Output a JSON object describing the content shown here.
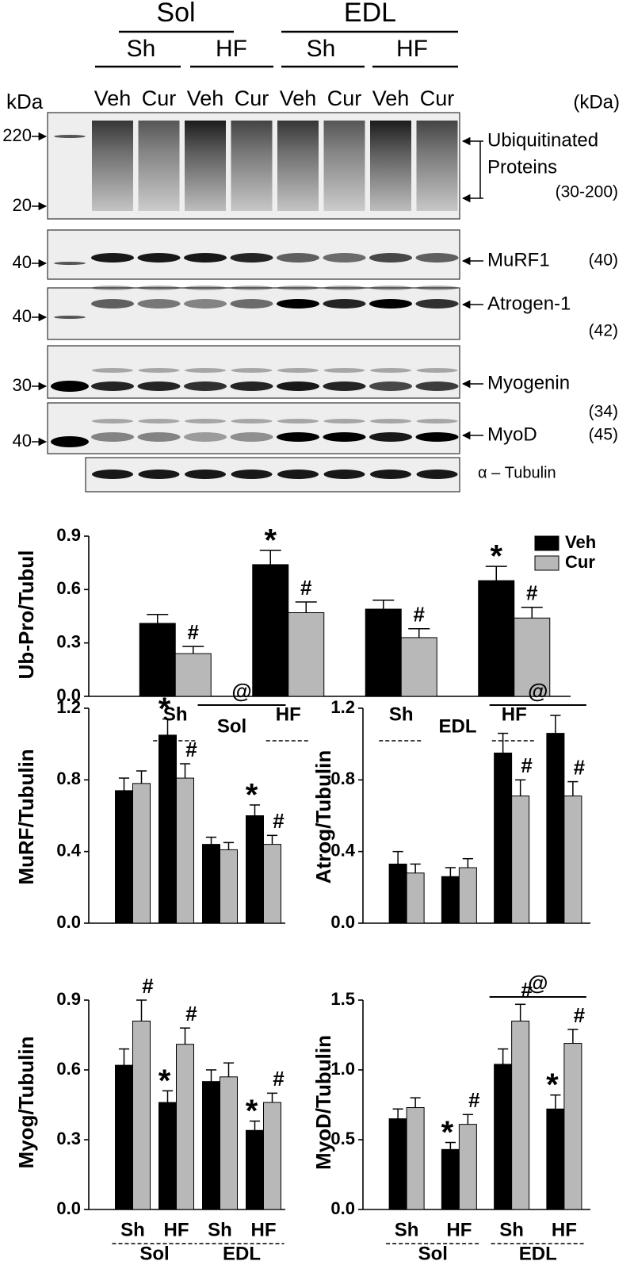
{
  "blot": {
    "tissues": [
      "Sol",
      "EDL"
    ],
    "conditions": [
      "Sh",
      "HF",
      "Sh",
      "HF"
    ],
    "treatments": [
      "Veh",
      "Cur",
      "Veh",
      "Cur",
      "Veh",
      "Cur",
      "Veh",
      "Cur"
    ],
    "kda_left": "kDa",
    "kda_right": "(kDa)",
    "panels": [
      {
        "markers": [
          "220",
          "20"
        ],
        "label": [
          "Ubiquitinated",
          "Proteins"
        ],
        "size": "(30-200)"
      },
      {
        "markers": [
          "40"
        ],
        "label": [
          "MuRF1"
        ],
        "size": "(40)"
      },
      {
        "markers": [
          "40"
        ],
        "label": [
          "Atrogen-1"
        ],
        "size": "(42)"
      },
      {
        "markers": [
          "30"
        ],
        "label": [
          "Myogenin"
        ],
        "size": "(34)"
      },
      {
        "markers": [
          "40"
        ],
        "label": [
          "MyoD"
        ],
        "size": "(45)"
      }
    ],
    "loading_control": "α – Tubulin"
  },
  "chart_data": [
    {
      "type": "bar",
      "y_label": "Ub-Pro/Tubul",
      "categories": [
        "Sh",
        "HF",
        "Sh",
        "HF"
      ],
      "groups": [
        "Sol",
        "EDL"
      ],
      "ylim": [
        0,
        0.9
      ],
      "yticks": [
        {
          "value": 0,
          "label": "0.0"
        },
        0.3,
        0.6,
        0.9
      ],
      "legend": true,
      "series": [
        {
          "name": "Veh",
          "color": "#000000",
          "values": [
            0.41,
            0.74,
            0.49,
            0.65
          ],
          "errors": [
            0.05,
            0.08,
            0.05,
            0.08
          ],
          "annotations": [
            null,
            "*",
            null,
            "*"
          ]
        },
        {
          "name": "Cur",
          "color": "#b8b8b8",
          "values": [
            0.24,
            0.47,
            0.33,
            0.44
          ],
          "errors": [
            0.04,
            0.06,
            0.05,
            0.06
          ],
          "annotations": [
            "#",
            "#",
            "#",
            "#"
          ]
        }
      ]
    },
    {
      "type": "bar",
      "y_label": "MuRF/Tubulin",
      "ylim": [
        0,
        1.2
      ],
      "yticks": [
        {
          "value": 0,
          "label": "0.0"
        },
        0.4,
        0.8,
        1.2
      ],
      "legend": false,
      "bracket": {
        "label": "@",
        "group": 1
      },
      "series": [
        {
          "name": "Veh",
          "color": "#000000",
          "values": [
            0.74,
            1.05,
            0.44,
            0.6
          ],
          "errors": [
            0.07,
            0.09,
            0.04,
            0.06
          ],
          "annotations": [
            null,
            "*",
            null,
            "*"
          ]
        },
        {
          "name": "Cur",
          "color": "#b8b8b8",
          "values": [
            0.78,
            0.81,
            0.41,
            0.44
          ],
          "errors": [
            0.07,
            0.08,
            0.04,
            0.05
          ],
          "annotations": [
            null,
            "#",
            null,
            "#"
          ]
        }
      ]
    },
    {
      "type": "bar",
      "y_label": "Atrog/Tubulin",
      "ylim": [
        0,
        1.2
      ],
      "yticks": [
        {
          "value": 0,
          "label": "0.0"
        },
        0.4,
        0.8,
        1.2
      ],
      "legend": false,
      "bracket": {
        "label": "@",
        "group": 1
      },
      "series": [
        {
          "name": "Veh",
          "color": "#000000",
          "values": [
            0.33,
            0.26,
            0.95,
            1.06
          ],
          "errors": [
            0.07,
            0.05,
            0.11,
            0.1
          ],
          "annotations": [
            null,
            null,
            null,
            null
          ]
        },
        {
          "name": "Cur",
          "color": "#b8b8b8",
          "values": [
            0.28,
            0.31,
            0.71,
            0.71
          ],
          "errors": [
            0.05,
            0.05,
            0.09,
            0.08
          ],
          "annotations": [
            null,
            null,
            "#",
            "#"
          ]
        }
      ]
    },
    {
      "type": "bar",
      "y_label": "Myog/Tubulin",
      "categories": [
        "Sh",
        "HF",
        "Sh",
        "HF"
      ],
      "groups": [
        "Sol",
        "EDL"
      ],
      "ylim": [
        0,
        0.9
      ],
      "yticks": [
        {
          "value": 0,
          "label": "0.0"
        },
        0.3,
        0.6,
        0.9
      ],
      "legend": false,
      "series": [
        {
          "name": "Veh",
          "color": "#000000",
          "values": [
            0.62,
            0.46,
            0.55,
            0.34
          ],
          "errors": [
            0.07,
            0.05,
            0.05,
            0.04
          ],
          "annotations": [
            null,
            "*",
            null,
            "*"
          ]
        },
        {
          "name": "Cur",
          "color": "#b8b8b8",
          "values": [
            0.81,
            0.71,
            0.57,
            0.46
          ],
          "errors": [
            0.09,
            0.07,
            0.06,
            0.04
          ],
          "annotations": [
            "#",
            "#",
            null,
            "#"
          ]
        }
      ]
    },
    {
      "type": "bar",
      "y_label": "MyoD/Tubulin",
      "categories": [
        "Sh",
        "HF",
        "Sh",
        "HF"
      ],
      "groups": [
        "Sol",
        "EDL"
      ],
      "ylim": [
        0,
        1.5
      ],
      "yticks": [
        {
          "value": 0,
          "label": "0.0"
        },
        0.5,
        {
          "value": 1,
          "label": "1.0"
        },
        1.5
      ],
      "legend": false,
      "bracket": {
        "label": "@",
        "group": 1
      },
      "series": [
        {
          "name": "Veh",
          "color": "#000000",
          "values": [
            0.65,
            0.43,
            1.04,
            0.72
          ],
          "errors": [
            0.07,
            0.05,
            0.11,
            0.1
          ],
          "annotations": [
            null,
            "*",
            null,
            "*"
          ]
        },
        {
          "name": "Cur",
          "color": "#b8b8b8",
          "values": [
            0.73,
            0.61,
            1.35,
            1.19
          ],
          "errors": [
            0.07,
            0.07,
            0.12,
            0.1
          ],
          "annotations": [
            null,
            "#",
            "#",
            "#"
          ]
        }
      ]
    }
  ]
}
